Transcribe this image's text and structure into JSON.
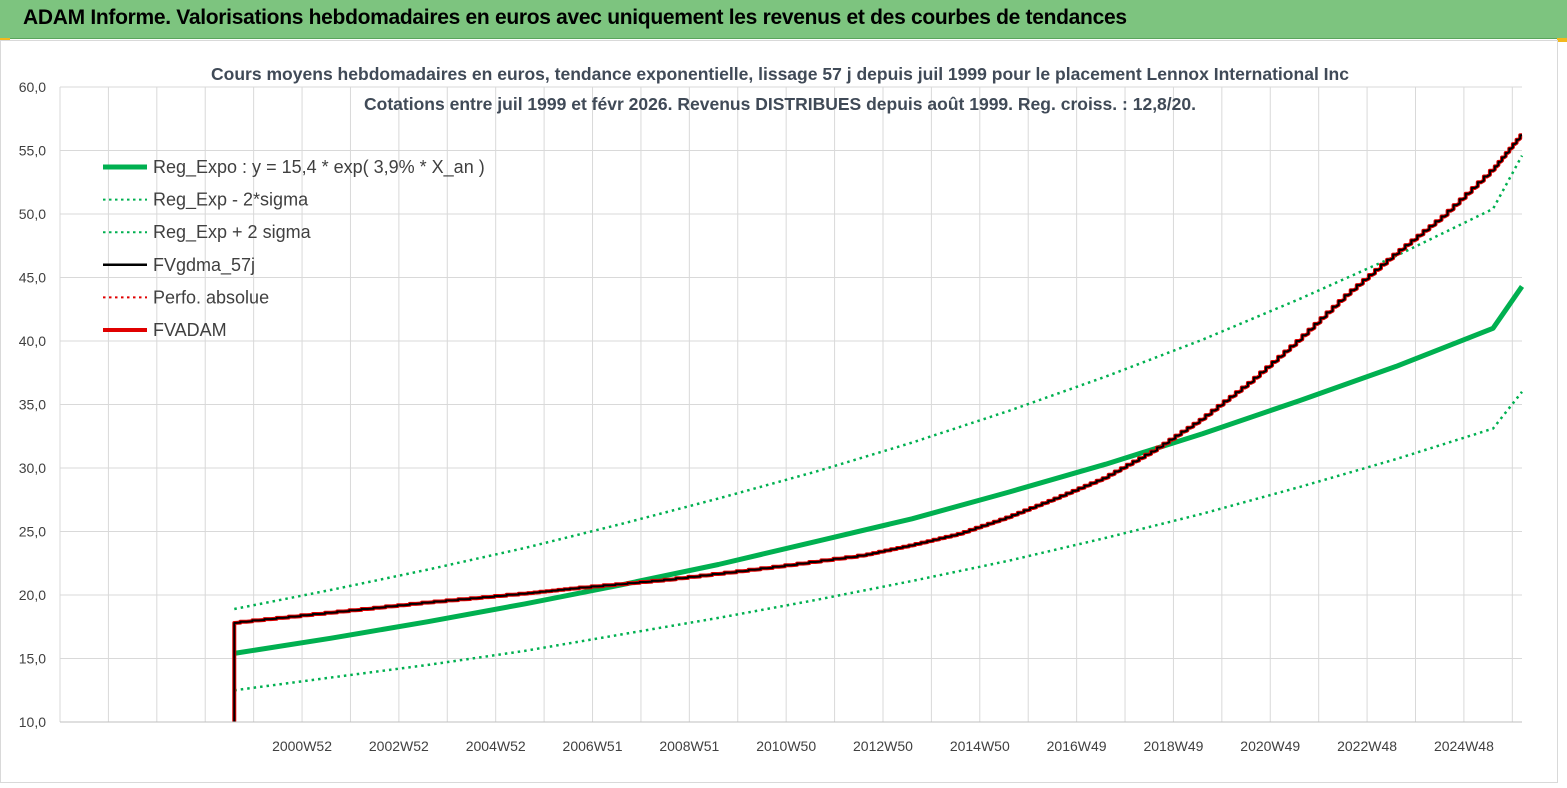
{
  "header": {
    "title": "ADAM Informe. Valorisations hebdomadaires en euros avec uniquement les revenus et des courbes de tendances"
  },
  "chart_data": {
    "type": "line",
    "title": "Cours moyens hebdomadaires en euros, tendance exponentielle, lissage 57 j depuis juil 1999 pour le placement Lennox International Inc",
    "subtitle": "Cotations entre juil 1999 et févr 2026.  Revenus DISTRIBUES depuis août 1999. Reg. croiss. : 12,8/20.",
    "xlabel": "",
    "ylabel": "",
    "ylim": [
      10,
      60
    ],
    "xlim": [
      1996.0,
      2026.2
    ],
    "y_ticks": [
      "10,0",
      "15,0",
      "20,0",
      "25,0",
      "30,0",
      "35,0",
      "40,0",
      "45,0",
      "50,0",
      "55,0",
      "60,0"
    ],
    "y_tick_values": [
      10,
      15,
      20,
      25,
      30,
      35,
      40,
      45,
      50,
      55,
      60
    ],
    "x_ticks": [
      "2000W52",
      "2002W52",
      "2004W52",
      "2006W51",
      "2008W51",
      "2010W50",
      "2012W50",
      "2014W50",
      "2016W49",
      "2018W49",
      "2020W49",
      "2022W48",
      "2024W48"
    ],
    "x_tick_values": [
      2001.0,
      2003.0,
      2005.0,
      2007.0,
      2009.0,
      2011.0,
      2013.0,
      2015.0,
      2017.0,
      2019.0,
      2021.0,
      2023.0,
      2025.0
    ],
    "grid": true,
    "legend_position": "top-left",
    "series": [
      {
        "name": "Reg_Expo : y = 15,4 * exp( 3,9% *  X_an )",
        "color": "#00b050",
        "style": "solid",
        "width": 5,
        "x": [
          1999.6,
          2001.6,
          2003.6,
          2005.6,
          2007.6,
          2009.6,
          2011.6,
          2013.6,
          2015.6,
          2017.6,
          2019.6,
          2021.6,
          2023.6,
          2025.6,
          2026.2
        ],
        "y": [
          15.4,
          16.6,
          17.9,
          19.3,
          20.8,
          22.4,
          24.2,
          26.0,
          28.1,
          30.3,
          32.7,
          35.3,
          38.0,
          41.0,
          44.3
        ]
      },
      {
        "name": "Reg_Exp - 2*sigma",
        "color": "#00b050",
        "style": "dotted",
        "width": 2.5,
        "x": [
          1999.6,
          2001.6,
          2003.6,
          2005.6,
          2007.6,
          2009.6,
          2011.6,
          2013.6,
          2015.6,
          2017.6,
          2019.6,
          2021.6,
          2023.6,
          2025.6,
          2026.2
        ],
        "y": [
          12.5,
          13.5,
          14.5,
          15.6,
          16.9,
          18.2,
          19.6,
          21.1,
          22.7,
          24.5,
          26.4,
          28.5,
          30.7,
          33.1,
          36.0
        ]
      },
      {
        "name": "Reg_Exp + 2 sigma",
        "color": "#00b050",
        "style": "dotted",
        "width": 2.5,
        "x": [
          1999.6,
          2001.6,
          2003.6,
          2005.6,
          2007.6,
          2009.6,
          2011.6,
          2013.6,
          2015.6,
          2017.6,
          2019.6,
          2021.6,
          2023.6,
          2025.6,
          2026.2
        ],
        "y": [
          18.9,
          20.4,
          22.0,
          23.7,
          25.6,
          27.6,
          29.7,
          32.0,
          34.5,
          37.2,
          40.1,
          43.3,
          46.7,
          50.4,
          54.6
        ]
      },
      {
        "name": "FVgdma_57j",
        "color": "#000000",
        "style": "solid",
        "width": 2,
        "x": [
          1999.6,
          1999.6,
          2001.6,
          2003.6,
          2005.6,
          2006.6,
          2008.6,
          2010.6,
          2012.6,
          2013.6,
          2014.6,
          2015.6,
          2016.6,
          2017.6,
          2018.6,
          2019.6,
          2020.6,
          2021.6,
          2022.6,
          2023.6,
          2024.6,
          2025.6,
          2026.2
        ],
        "y": [
          10.0,
          17.8,
          18.6,
          19.4,
          20.1,
          20.5,
          21.2,
          22.1,
          23.1,
          23.9,
          24.8,
          26.1,
          27.6,
          29.2,
          31.3,
          33.8,
          36.7,
          40.0,
          43.6,
          46.8,
          49.8,
          53.4,
          56.2
        ]
      },
      {
        "name": "Perfo. absolue",
        "color": "#e00000",
        "style": "dotted",
        "width": 2,
        "x": [],
        "y": []
      },
      {
        "name": "FVADAM",
        "color": "#e00000",
        "style": "solid",
        "width": 4,
        "x": [
          1999.6,
          1999.6,
          2001.6,
          2003.6,
          2005.6,
          2006.6,
          2008.6,
          2010.6,
          2012.6,
          2013.6,
          2014.6,
          2015.6,
          2016.6,
          2017.6,
          2018.6,
          2019.6,
          2020.6,
          2021.6,
          2022.6,
          2023.6,
          2024.6,
          2025.6,
          2026.2
        ],
        "y": [
          10.0,
          17.8,
          18.6,
          19.4,
          20.1,
          20.5,
          21.2,
          22.1,
          23.1,
          23.9,
          24.8,
          26.1,
          27.6,
          29.2,
          31.3,
          33.8,
          36.7,
          40.0,
          43.6,
          46.8,
          49.8,
          53.4,
          56.2
        ]
      }
    ]
  }
}
